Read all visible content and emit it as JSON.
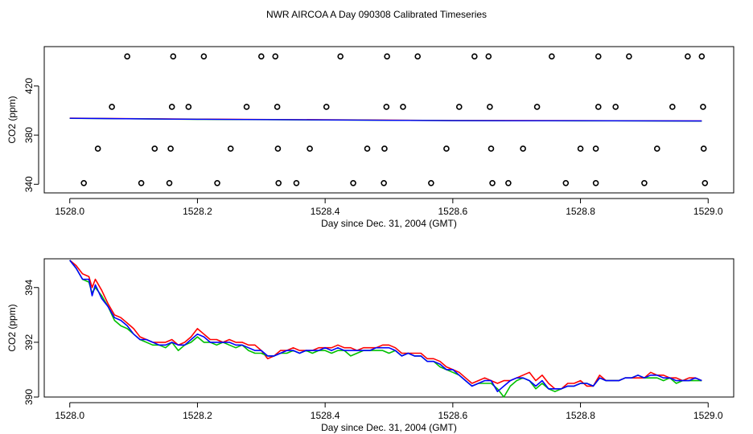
{
  "figure": {
    "title": "NWR AIRCOA A  Day 090308  Calibrated Timeseries"
  },
  "chart_data": [
    {
      "type": "scatter",
      "title": "",
      "xlabel": "Day since Dec. 31, 2004 (GMT)",
      "ylabel": "CO2 (ppm)",
      "xlim": [
        1527.96,
        1529.04
      ],
      "ylim": [
        333,
        452
      ],
      "xticks": [
        1528.0,
        1528.2,
        1528.4,
        1528.6,
        1528.8,
        1529.0
      ],
      "xtick_labels": [
        "1528.0",
        "1528.2",
        "1528.4",
        "1528.6",
        "1528.8",
        "1529.0"
      ],
      "yticks": [
        340,
        380,
        420
      ],
      "ytick_labels": [
        "340",
        "380",
        "420"
      ],
      "grid": false,
      "points": {
        "x": [
          1528.09,
          1528.162,
          1528.21,
          1528.3,
          1528.322,
          1528.424,
          1528.497,
          1528.545,
          1528.634,
          1528.656,
          1528.755,
          1528.828,
          1528.876,
          1528.968,
          1528.99,
          1528.066,
          1528.16,
          1528.186,
          1528.277,
          1528.325,
          1528.402,
          1528.496,
          1528.522,
          1528.61,
          1528.658,
          1528.732,
          1528.828,
          1528.855,
          1528.944,
          1528.992,
          1528.044,
          1528.133,
          1528.158,
          1528.252,
          1528.326,
          1528.376,
          1528.466,
          1528.493,
          1528.59,
          1528.66,
          1528.71,
          1528.8,
          1528.824,
          1528.92,
          1528.993,
          1528.022,
          1528.112,
          1528.156,
          1528.231,
          1528.327,
          1528.355,
          1528.444,
          1528.492,
          1528.566,
          1528.662,
          1528.687,
          1528.777,
          1528.824,
          1528.9,
          1528.995
        ],
        "y": [
          444,
          444,
          444,
          444,
          444,
          444,
          444,
          444,
          444,
          444,
          444,
          444,
          444,
          444,
          444,
          403,
          403,
          403,
          403,
          403,
          403,
          403,
          403,
          403,
          403,
          403,
          403,
          403,
          403,
          403,
          369,
          369,
          369,
          369,
          369,
          369,
          369,
          369,
          369,
          369,
          369,
          369,
          369,
          369,
          369,
          341,
          341,
          341,
          341,
          341,
          341,
          341,
          341,
          341,
          341,
          341,
          341,
          341,
          341,
          341
        ]
      },
      "series": [
        {
          "color": "#ff0000",
          "x": [
            1528.0,
            1528.2,
            1528.4,
            1528.6,
            1528.8,
            1528.99
          ],
          "y": [
            393.8,
            393.0,
            392.5,
            391.9,
            391.8,
            391.5
          ]
        },
        {
          "color": "#00c000",
          "x": [
            1528.0,
            1528.2,
            1528.4,
            1528.6,
            1528.8,
            1528.99
          ],
          "y": [
            393.6,
            392.8,
            392.3,
            391.8,
            391.6,
            391.4
          ]
        },
        {
          "color": "#0000ff",
          "x": [
            1528.0,
            1528.2,
            1528.4,
            1528.6,
            1528.8,
            1528.99
          ],
          "y": [
            393.7,
            392.9,
            392.4,
            391.8,
            391.7,
            391.5
          ]
        }
      ]
    },
    {
      "type": "line",
      "title": "",
      "xlabel": "Day since Dec. 31, 2004 (GMT)",
      "ylabel": "CO2 (ppm)",
      "xlim": [
        1527.96,
        1529.04
      ],
      "ylim": [
        390.0,
        395.05
      ],
      "xticks": [
        1528.0,
        1528.2,
        1528.4,
        1528.6,
        1528.8,
        1529.0
      ],
      "xtick_labels": [
        "1528.0",
        "1528.2",
        "1528.4",
        "1528.6",
        "1528.8",
        "1529.0"
      ],
      "yticks": [
        390,
        392,
        394
      ],
      "ytick_labels": [
        "390",
        "392",
        "394"
      ],
      "grid": false,
      "series": [
        {
          "color": "#ff0000",
          "x": [
            1528.0,
            1528.01,
            1528.02,
            1528.03,
            1528.035,
            1528.04,
            1528.05,
            1528.06,
            1528.07,
            1528.08,
            1528.09,
            1528.1,
            1528.11,
            1528.12,
            1528.13,
            1528.14,
            1528.15,
            1528.16,
            1528.17,
            1528.18,
            1528.19,
            1528.2,
            1528.21,
            1528.22,
            1528.23,
            1528.24,
            1528.25,
            1528.26,
            1528.27,
            1528.28,
            1528.29,
            1528.3,
            1528.31,
            1528.32,
            1528.33,
            1528.34,
            1528.35,
            1528.36,
            1528.37,
            1528.38,
            1528.39,
            1528.4,
            1528.41,
            1528.42,
            1528.43,
            1528.44,
            1528.45,
            1528.46,
            1528.47,
            1528.48,
            1528.49,
            1528.5,
            1528.51,
            1528.52,
            1528.53,
            1528.54,
            1528.55,
            1528.56,
            1528.57,
            1528.58,
            1528.59,
            1528.6,
            1528.61,
            1528.62,
            1528.63,
            1528.64,
            1528.65,
            1528.66,
            1528.67,
            1528.68,
            1528.69,
            1528.7,
            1528.71,
            1528.72,
            1528.73,
            1528.74,
            1528.75,
            1528.76,
            1528.77,
            1528.78,
            1528.79,
            1528.8,
            1528.81,
            1528.82,
            1528.83,
            1528.84,
            1528.85,
            1528.86,
            1528.87,
            1528.88,
            1528.89,
            1528.9,
            1528.91,
            1528.92,
            1528.93,
            1528.94,
            1528.95,
            1528.96,
            1528.97,
            1528.98,
            1528.99
          ],
          "y": [
            395.0,
            394.8,
            394.5,
            394.4,
            394.0,
            394.3,
            393.9,
            393.4,
            393.0,
            392.9,
            392.7,
            392.5,
            392.2,
            392.1,
            392.0,
            392.0,
            392.0,
            392.1,
            391.9,
            392.0,
            392.2,
            392.5,
            392.3,
            392.1,
            392.1,
            392.0,
            392.1,
            392.0,
            392.0,
            391.9,
            391.9,
            391.7,
            391.4,
            391.5,
            391.7,
            391.7,
            391.8,
            391.7,
            391.7,
            391.7,
            391.8,
            391.8,
            391.8,
            391.9,
            391.8,
            391.8,
            391.7,
            391.8,
            391.8,
            391.8,
            391.9,
            391.9,
            391.8,
            391.6,
            391.6,
            391.6,
            391.6,
            391.4,
            391.4,
            391.3,
            391.1,
            391.0,
            390.9,
            390.7,
            390.5,
            390.6,
            390.7,
            390.6,
            390.5,
            390.6,
            390.6,
            390.7,
            390.8,
            390.9,
            390.6,
            390.8,
            390.5,
            390.3,
            390.3,
            390.5,
            390.5,
            390.6,
            390.4,
            390.4,
            390.8,
            390.6,
            390.6,
            390.6,
            390.7,
            390.7,
            390.7,
            390.7,
            390.9,
            390.8,
            390.8,
            390.7,
            390.7,
            390.6,
            390.7,
            390.7,
            390.6
          ]
        },
        {
          "color": "#00c000",
          "x": [
            1528.0,
            1528.01,
            1528.02,
            1528.03,
            1528.035,
            1528.04,
            1528.05,
            1528.06,
            1528.07,
            1528.08,
            1528.09,
            1528.1,
            1528.11,
            1528.12,
            1528.13,
            1528.14,
            1528.15,
            1528.16,
            1528.17,
            1528.18,
            1528.19,
            1528.2,
            1528.21,
            1528.22,
            1528.23,
            1528.24,
            1528.25,
            1528.26,
            1528.27,
            1528.28,
            1528.29,
            1528.3,
            1528.31,
            1528.32,
            1528.33,
            1528.34,
            1528.35,
            1528.36,
            1528.37,
            1528.38,
            1528.39,
            1528.4,
            1528.41,
            1528.42,
            1528.43,
            1528.44,
            1528.45,
            1528.46,
            1528.47,
            1528.48,
            1528.49,
            1528.5,
            1528.51,
            1528.52,
            1528.53,
            1528.54,
            1528.55,
            1528.56,
            1528.57,
            1528.58,
            1528.59,
            1528.6,
            1528.61,
            1528.62,
            1528.63,
            1528.64,
            1528.65,
            1528.66,
            1528.67,
            1528.68,
            1528.69,
            1528.7,
            1528.71,
            1528.72,
            1528.73,
            1528.74,
            1528.75,
            1528.76,
            1528.77,
            1528.78,
            1528.79,
            1528.8,
            1528.81,
            1528.82,
            1528.83,
            1528.84,
            1528.85,
            1528.86,
            1528.87,
            1528.88,
            1528.89,
            1528.9,
            1528.91,
            1528.92,
            1528.93,
            1528.94,
            1528.95,
            1528.96,
            1528.97,
            1528.98,
            1528.99
          ],
          "y": [
            395.0,
            394.7,
            394.3,
            394.2,
            393.8,
            394.0,
            393.7,
            393.3,
            392.8,
            392.6,
            392.5,
            392.3,
            392.1,
            392.0,
            391.9,
            391.9,
            391.8,
            392.0,
            391.7,
            391.9,
            392.0,
            392.2,
            392.0,
            392.0,
            391.9,
            392.0,
            391.9,
            391.8,
            391.9,
            391.7,
            391.6,
            391.6,
            391.5,
            391.5,
            391.6,
            391.6,
            391.7,
            391.6,
            391.7,
            391.6,
            391.7,
            391.7,
            391.6,
            391.7,
            391.7,
            391.5,
            391.6,
            391.7,
            391.7,
            391.7,
            391.7,
            391.6,
            391.7,
            391.5,
            391.6,
            391.5,
            391.5,
            391.3,
            391.3,
            391.1,
            391.0,
            390.9,
            390.8,
            390.6,
            390.4,
            390.5,
            390.5,
            390.5,
            390.3,
            390.0,
            390.4,
            390.6,
            390.7,
            390.6,
            390.3,
            390.5,
            390.3,
            390.2,
            390.3,
            390.4,
            390.4,
            390.5,
            390.5,
            390.4,
            390.7,
            390.6,
            390.6,
            390.6,
            390.7,
            390.7,
            390.8,
            390.7,
            390.7,
            390.7,
            390.6,
            390.7,
            390.5,
            390.6,
            390.6,
            390.6,
            390.6
          ]
        },
        {
          "color": "#0000ff",
          "x": [
            1528.0,
            1528.01,
            1528.02,
            1528.03,
            1528.035,
            1528.04,
            1528.05,
            1528.06,
            1528.07,
            1528.08,
            1528.09,
            1528.1,
            1528.11,
            1528.12,
            1528.13,
            1528.14,
            1528.15,
            1528.16,
            1528.17,
            1528.18,
            1528.19,
            1528.2,
            1528.21,
            1528.22,
            1528.23,
            1528.24,
            1528.25,
            1528.26,
            1528.27,
            1528.28,
            1528.29,
            1528.3,
            1528.31,
            1528.32,
            1528.33,
            1528.34,
            1528.35,
            1528.36,
            1528.37,
            1528.38,
            1528.39,
            1528.4,
            1528.41,
            1528.42,
            1528.43,
            1528.44,
            1528.45,
            1528.46,
            1528.47,
            1528.48,
            1528.49,
            1528.5,
            1528.51,
            1528.52,
            1528.53,
            1528.54,
            1528.55,
            1528.56,
            1528.57,
            1528.58,
            1528.59,
            1528.6,
            1528.61,
            1528.62,
            1528.63,
            1528.64,
            1528.65,
            1528.66,
            1528.67,
            1528.68,
            1528.69,
            1528.7,
            1528.71,
            1528.72,
            1528.73,
            1528.74,
            1528.75,
            1528.76,
            1528.77,
            1528.78,
            1528.79,
            1528.8,
            1528.81,
            1528.82,
            1528.83,
            1528.84,
            1528.85,
            1528.86,
            1528.87,
            1528.88,
            1528.89,
            1528.9,
            1528.91,
            1528.92,
            1528.93,
            1528.94,
            1528.95,
            1528.96,
            1528.97,
            1528.98,
            1528.99
          ],
          "y": [
            395.0,
            394.7,
            394.3,
            394.3,
            393.7,
            394.1,
            393.6,
            393.3,
            392.9,
            392.8,
            392.6,
            392.3,
            392.1,
            392.1,
            392.0,
            391.9,
            391.9,
            392.0,
            391.9,
            391.9,
            392.1,
            392.3,
            392.2,
            392.0,
            392.0,
            392.0,
            392.0,
            391.9,
            391.9,
            391.8,
            391.7,
            391.7,
            391.5,
            391.5,
            391.6,
            391.7,
            391.7,
            391.6,
            391.7,
            391.7,
            391.7,
            391.8,
            391.7,
            391.8,
            391.7,
            391.7,
            391.7,
            391.7,
            391.7,
            391.8,
            391.8,
            391.8,
            391.7,
            391.5,
            391.6,
            391.5,
            391.5,
            391.3,
            391.3,
            391.2,
            391.0,
            391.0,
            390.8,
            390.6,
            390.4,
            390.5,
            390.6,
            390.6,
            390.2,
            390.4,
            390.6,
            390.7,
            390.7,
            390.6,
            390.4,
            390.6,
            390.3,
            390.3,
            390.3,
            390.4,
            390.4,
            390.5,
            390.5,
            390.4,
            390.7,
            390.6,
            390.6,
            390.6,
            390.7,
            390.7,
            390.8,
            390.7,
            390.8,
            390.8,
            390.7,
            390.7,
            390.6,
            390.6,
            390.6,
            390.7,
            390.6
          ]
        }
      ]
    }
  ]
}
